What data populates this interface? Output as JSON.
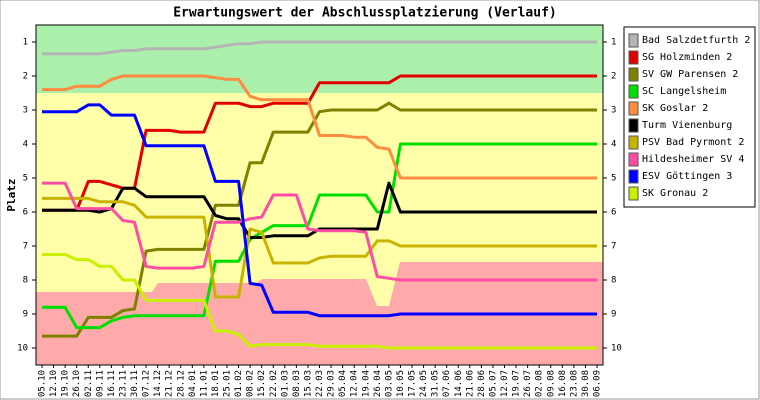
{
  "chart_data": {
    "type": "line",
    "title": "Erwartungswert der Abschlussplatzierung (Verlauf)",
    "ylabel": "Platz",
    "categories": [
      "05.10",
      "12.10",
      "19.10",
      "26.10",
      "02.11",
      "09.11",
      "16.11",
      "23.11",
      "30.11",
      "07.12",
      "14.12",
      "21.12",
      "28.12",
      "04.01",
      "11.01",
      "18.01",
      "25.01",
      "01.02",
      "08.02",
      "15.02",
      "22.02",
      "01.03",
      "08.03",
      "15.03",
      "22.03",
      "29.03",
      "05.04",
      "12.04",
      "19.04",
      "26.04",
      "03.05",
      "10.05",
      "17.05",
      "24.05",
      "31.05",
      "07.06",
      "14.06",
      "21.06",
      "28.06",
      "05.07",
      "12.07",
      "19.07",
      "26.07",
      "02.08",
      "09.08",
      "16.08",
      "23.08",
      "30.08",
      "06.09"
    ],
    "ylim": [
      0.5,
      10.5
    ],
    "yticks": [
      1,
      2,
      3,
      4,
      5,
      6,
      7,
      8,
      9,
      10
    ],
    "y_inverted": true,
    "series": [
      {
        "name": "Bad Salzdetfurth 2",
        "color": "#b4b4b4",
        "values": [
          1.35,
          1.35,
          1.35,
          1.35,
          1.35,
          1.35,
          1.3,
          1.25,
          1.25,
          1.2,
          1.2,
          1.2,
          1.2,
          1.2,
          1.2,
          1.15,
          1.1,
          1.05,
          1.05,
          1,
          1,
          1,
          1,
          1,
          1,
          1,
          1,
          1,
          1,
          1,
          1,
          1,
          1,
          1,
          1,
          1,
          1,
          1,
          1,
          1,
          1,
          1,
          1,
          1,
          1,
          1,
          1,
          1,
          1
        ]
      },
      {
        "name": "SG Holzminden 2",
        "color": "#e00000",
        "values": [
          5.95,
          5.95,
          5.95,
          5.95,
          5.1,
          5.1,
          5.2,
          5.3,
          5.3,
          3.6,
          3.6,
          3.6,
          3.65,
          3.65,
          3.65,
          2.8,
          2.8,
          2.8,
          2.9,
          2.9,
          2.8,
          2.8,
          2.8,
          2.8,
          2.2,
          2.2,
          2.2,
          2.2,
          2.2,
          2.2,
          2.2,
          2,
          2,
          2,
          2,
          2,
          2,
          2,
          2,
          2,
          2,
          2,
          2,
          2,
          2,
          2,
          2,
          2,
          2
        ]
      },
      {
        "name": "SV GW Parensen 2",
        "color": "#808000",
        "values": [
          9.65,
          9.65,
          9.65,
          9.65,
          9.1,
          9.1,
          9.1,
          8.9,
          8.85,
          7.15,
          7.1,
          7.1,
          7.1,
          7.1,
          7.1,
          5.8,
          5.8,
          5.8,
          4.55,
          4.55,
          3.65,
          3.65,
          3.65,
          3.65,
          3.05,
          3,
          3,
          3,
          3,
          3,
          2.8,
          3,
          3,
          3,
          3,
          3,
          3,
          3,
          3,
          3,
          3,
          3,
          3,
          3,
          3,
          3,
          3,
          3,
          3
        ]
      },
      {
        "name": "SC Langelsheim",
        "color": "#00e000",
        "values": [
          8.8,
          8.8,
          8.8,
          9.4,
          9.4,
          9.4,
          9.2,
          9.1,
          9.05,
          9.05,
          9.05,
          9.05,
          9.05,
          9.05,
          9.05,
          7.45,
          7.45,
          7.45,
          6.8,
          6.6,
          6.4,
          6.4,
          6.4,
          6.4,
          5.5,
          5.5,
          5.5,
          5.5,
          5.5,
          6,
          6,
          4,
          4,
          4,
          4,
          4,
          4,
          4,
          4,
          4,
          4,
          4,
          4,
          4,
          4,
          4,
          4,
          4,
          4
        ]
      },
      {
        "name": "SK Goslar 2",
        "color": "#ff8c40",
        "values": [
          2.4,
          2.4,
          2.4,
          2.3,
          2.3,
          2.3,
          2.1,
          2,
          2,
          2,
          2,
          2,
          2,
          2,
          2,
          2.05,
          2.1,
          2.1,
          2.6,
          2.7,
          2.7,
          2.7,
          2.7,
          2.7,
          3.75,
          3.75,
          3.75,
          3.8,
          3.8,
          4.1,
          4.15,
          5,
          5,
          5,
          5,
          5,
          5,
          5,
          5,
          5,
          5,
          5,
          5,
          5,
          5,
          5,
          5,
          5,
          5
        ]
      },
      {
        "name": "Turm Vienenburg",
        "color": "#000000",
        "values": [
          5.95,
          5.95,
          5.95,
          5.95,
          5.95,
          6,
          5.9,
          5.3,
          5.3,
          5.55,
          5.55,
          5.55,
          5.55,
          5.55,
          5.55,
          6.1,
          6.2,
          6.2,
          6.75,
          6.75,
          6.7,
          6.7,
          6.7,
          6.7,
          6.5,
          6.5,
          6.5,
          6.5,
          6.5,
          6.5,
          5.15,
          6,
          6,
          6,
          6,
          6,
          6,
          6,
          6,
          6,
          6,
          6,
          6,
          6,
          6,
          6,
          6,
          6,
          6
        ]
      },
      {
        "name": "PSV Bad Pyrmont 2",
        "color": "#c8b400",
        "values": [
          5.6,
          5.6,
          5.6,
          5.6,
          5.6,
          5.7,
          5.7,
          5.7,
          5.8,
          6.15,
          6.15,
          6.15,
          6.15,
          6.15,
          6.15,
          8.5,
          8.5,
          8.5,
          6.5,
          6.6,
          7.5,
          7.5,
          7.5,
          7.5,
          7.35,
          7.3,
          7.3,
          7.3,
          7.3,
          6.85,
          6.85,
          7,
          7,
          7,
          7,
          7,
          7,
          7,
          7,
          7,
          7,
          7,
          7,
          7,
          7,
          7,
          7,
          7,
          7
        ]
      },
      {
        "name": "Hildesheimer SV 4",
        "color": "#ff4da6",
        "values": [
          5.15,
          5.15,
          5.15,
          5.9,
          5.9,
          5.9,
          5.9,
          6.25,
          6.3,
          7.6,
          7.65,
          7.65,
          7.65,
          7.65,
          7.6,
          6.3,
          6.3,
          6.3,
          6.2,
          6.15,
          5.5,
          5.5,
          5.5,
          6.5,
          6.55,
          6.55,
          6.55,
          6.55,
          6.6,
          7.9,
          7.95,
          8,
          8,
          8,
          8,
          8,
          8,
          8,
          8,
          8,
          8,
          8,
          8,
          8,
          8,
          8,
          8,
          8,
          8
        ]
      },
      {
        "name": "ESV Göttingen 3",
        "color": "#0000ff",
        "values": [
          3.05,
          3.05,
          3.05,
          3.05,
          2.85,
          2.85,
          3.15,
          3.15,
          3.15,
          4.05,
          4.05,
          4.05,
          4.05,
          4.05,
          4.05,
          5.1,
          5.1,
          5.1,
          8.1,
          8.15,
          8.95,
          8.95,
          8.95,
          8.95,
          9.05,
          9.05,
          9.05,
          9.05,
          9.05,
          9.05,
          9.05,
          9,
          9,
          9,
          9,
          9,
          9,
          9,
          9,
          9,
          9,
          9,
          9,
          9,
          9,
          9,
          9,
          9,
          9
        ]
      },
      {
        "name": "SK Gronau 2",
        "color": "#c8f000",
        "values": [
          7.25,
          7.25,
          7.25,
          7.4,
          7.4,
          7.6,
          7.6,
          8,
          8,
          8.6,
          8.6,
          8.6,
          8.6,
          8.6,
          8.6,
          9.5,
          9.5,
          9.6,
          9.95,
          9.9,
          9.9,
          9.9,
          9.9,
          9.9,
          9.95,
          9.95,
          9.95,
          9.95,
          9.95,
          9.95,
          10,
          10,
          10,
          10,
          10,
          10,
          10,
          10,
          10,
          10,
          10,
          10,
          10,
          10,
          10,
          10,
          10,
          10,
          10
        ]
      }
    ]
  }
}
